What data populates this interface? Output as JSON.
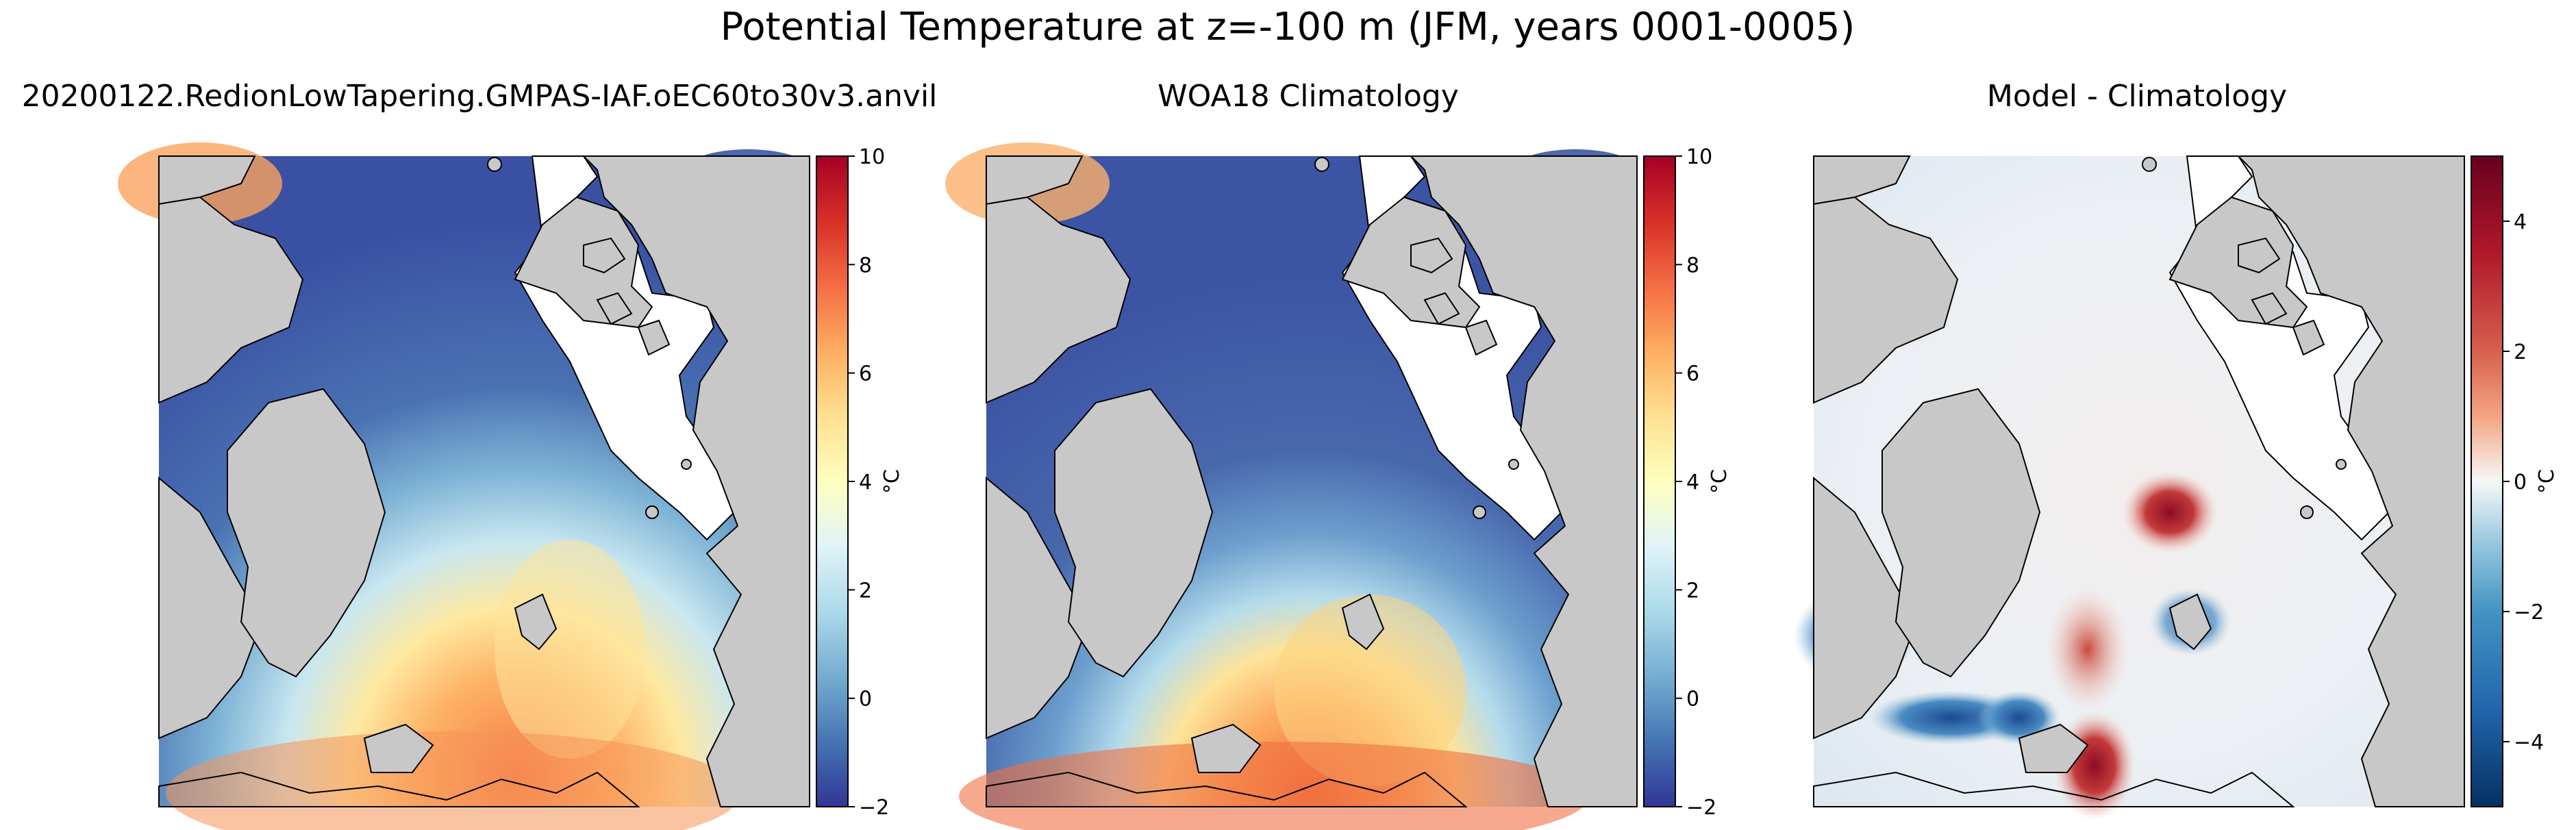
{
  "figure": {
    "suptitle": "Potential Temperature at z=-100 m (JFM, years 0001-0005)"
  },
  "panels": [
    {
      "title": "20200122.RedionLowTapering.GMPAS-IAF.oEC60to30v3.anvil",
      "colorbar": {
        "label": "°C",
        "ticks": [
          "10",
          "8",
          "6",
          "4",
          "2",
          "0",
          "−2"
        ],
        "colormap": "RdYlBu_r"
      }
    },
    {
      "title": "WOA18 Climatology",
      "colorbar": {
        "label": "°C",
        "ticks": [
          "10",
          "8",
          "6",
          "4",
          "2",
          "0",
          "−2"
        ],
        "colormap": "RdYlBu_r"
      }
    },
    {
      "title": "Model - Climatology",
      "colorbar": {
        "label": "°C",
        "ticks": [
          "4",
          "2",
          "0",
          "−2",
          "−4"
        ],
        "colormap": "RdBu_r"
      }
    }
  ],
  "colors": {
    "land": "#c8c8c8",
    "cold": "#3a55a4",
    "warm": "#f08a4b",
    "diff_neg": "#1f5ea8",
    "diff_pos": "#b3282e",
    "neutral": "#f2f2f2"
  },
  "chart_data": [
    {
      "type": "heatmap",
      "title": "20200122.RedionLowTapering.GMPAS-IAF.oEC60to30v3.anvil",
      "colorbar_label": "°C",
      "colorbar_range": [
        -2,
        10
      ],
      "colorbar_ticks": [
        -2,
        0,
        2,
        4,
        6,
        8,
        10
      ],
      "colormap": "RdYlBu_r",
      "projection": "north polar stereographic"
    },
    {
      "type": "heatmap",
      "title": "WOA18 Climatology",
      "colorbar_label": "°C",
      "colorbar_range": [
        -2,
        10
      ],
      "colorbar_ticks": [
        -2,
        0,
        2,
        4,
        6,
        8,
        10
      ],
      "colormap": "RdYlBu_r",
      "projection": "north polar stereographic"
    },
    {
      "type": "heatmap",
      "title": "Model - Climatology",
      "colorbar_label": "°C",
      "colorbar_range": [
        -5,
        5
      ],
      "colorbar_ticks": [
        -4,
        -2,
        0,
        2,
        4
      ],
      "colormap": "RdBu_r",
      "projection": "north polar stereographic"
    }
  ]
}
